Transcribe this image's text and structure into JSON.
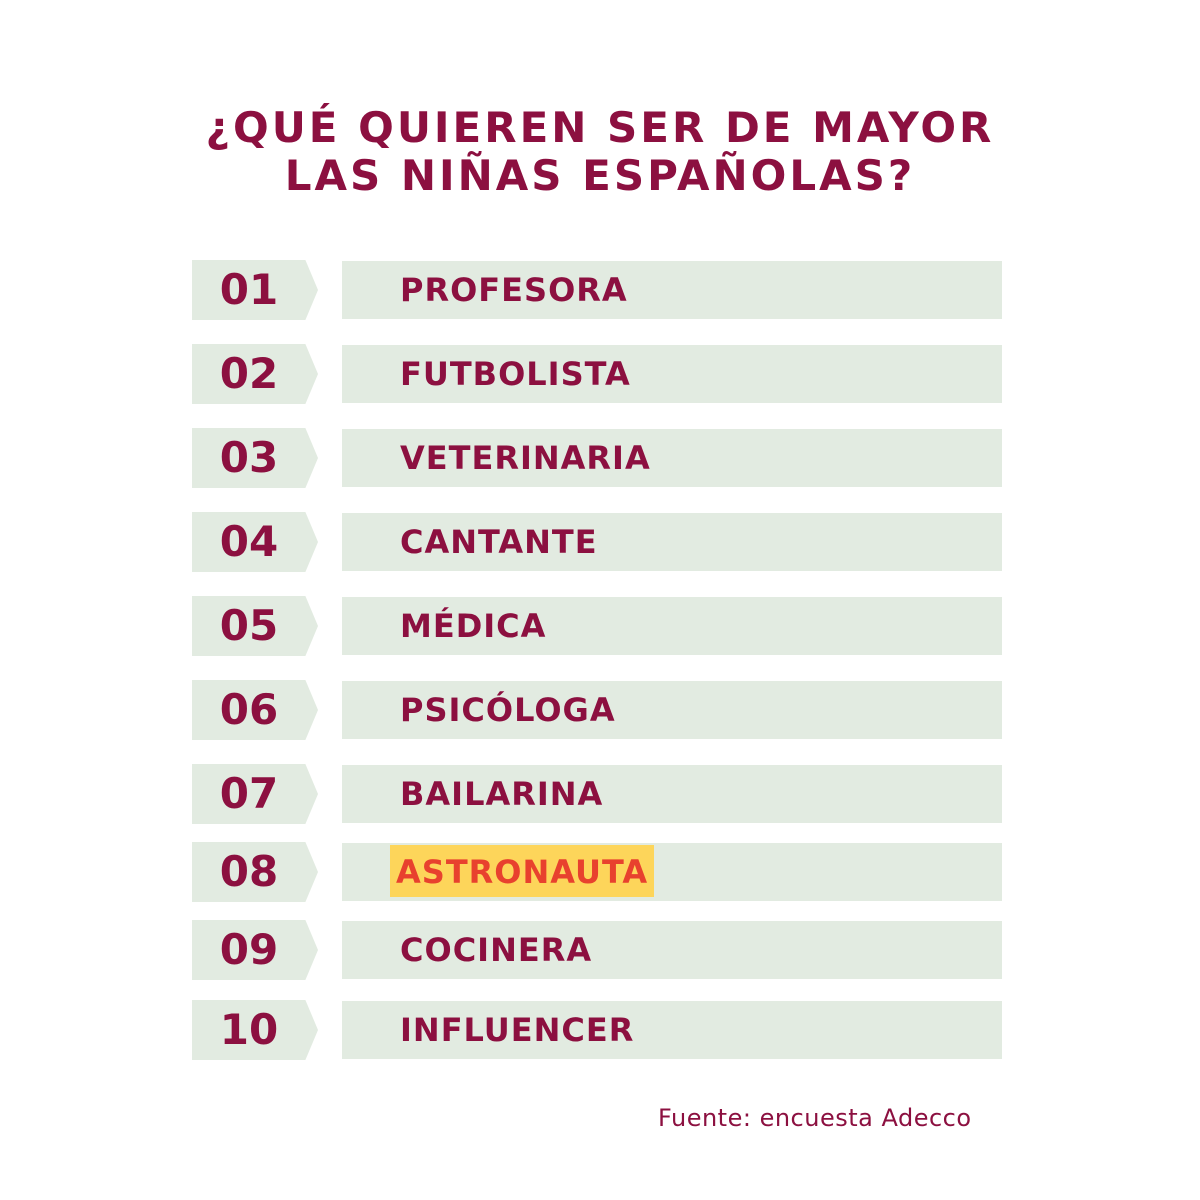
{
  "title": {
    "line1": "¿QUÉ QUIEREN SER DE MAYOR",
    "line2": "LAS NIÑAS ESPAÑOLAS?"
  },
  "ranking": [
    {
      "rank": "01",
      "label": "PROFESORA"
    },
    {
      "rank": "02",
      "label": "FUTBOLISTA"
    },
    {
      "rank": "03",
      "label": "VETERINARIA"
    },
    {
      "rank": "04",
      "label": "CANTANTE"
    },
    {
      "rank": "05",
      "label": "MÉDICA"
    },
    {
      "rank": "06",
      "label": "PSICÓLOGA"
    },
    {
      "rank": "07",
      "label": "BAILARINA"
    },
    {
      "rank": "08",
      "label": "ASTRONAUTA",
      "highlighted": true
    },
    {
      "rank": "09",
      "label": "COCINERA"
    },
    {
      "rank": "10",
      "label": "INFLUENCER"
    }
  ],
  "source": "Fuente: encuesta Adecco",
  "colors": {
    "primary": "#8c1040",
    "bar_background": "#e2ebe1",
    "highlight_background": "#fdd55a",
    "highlight_text": "#e8412e",
    "page_background": "#ffffff"
  }
}
